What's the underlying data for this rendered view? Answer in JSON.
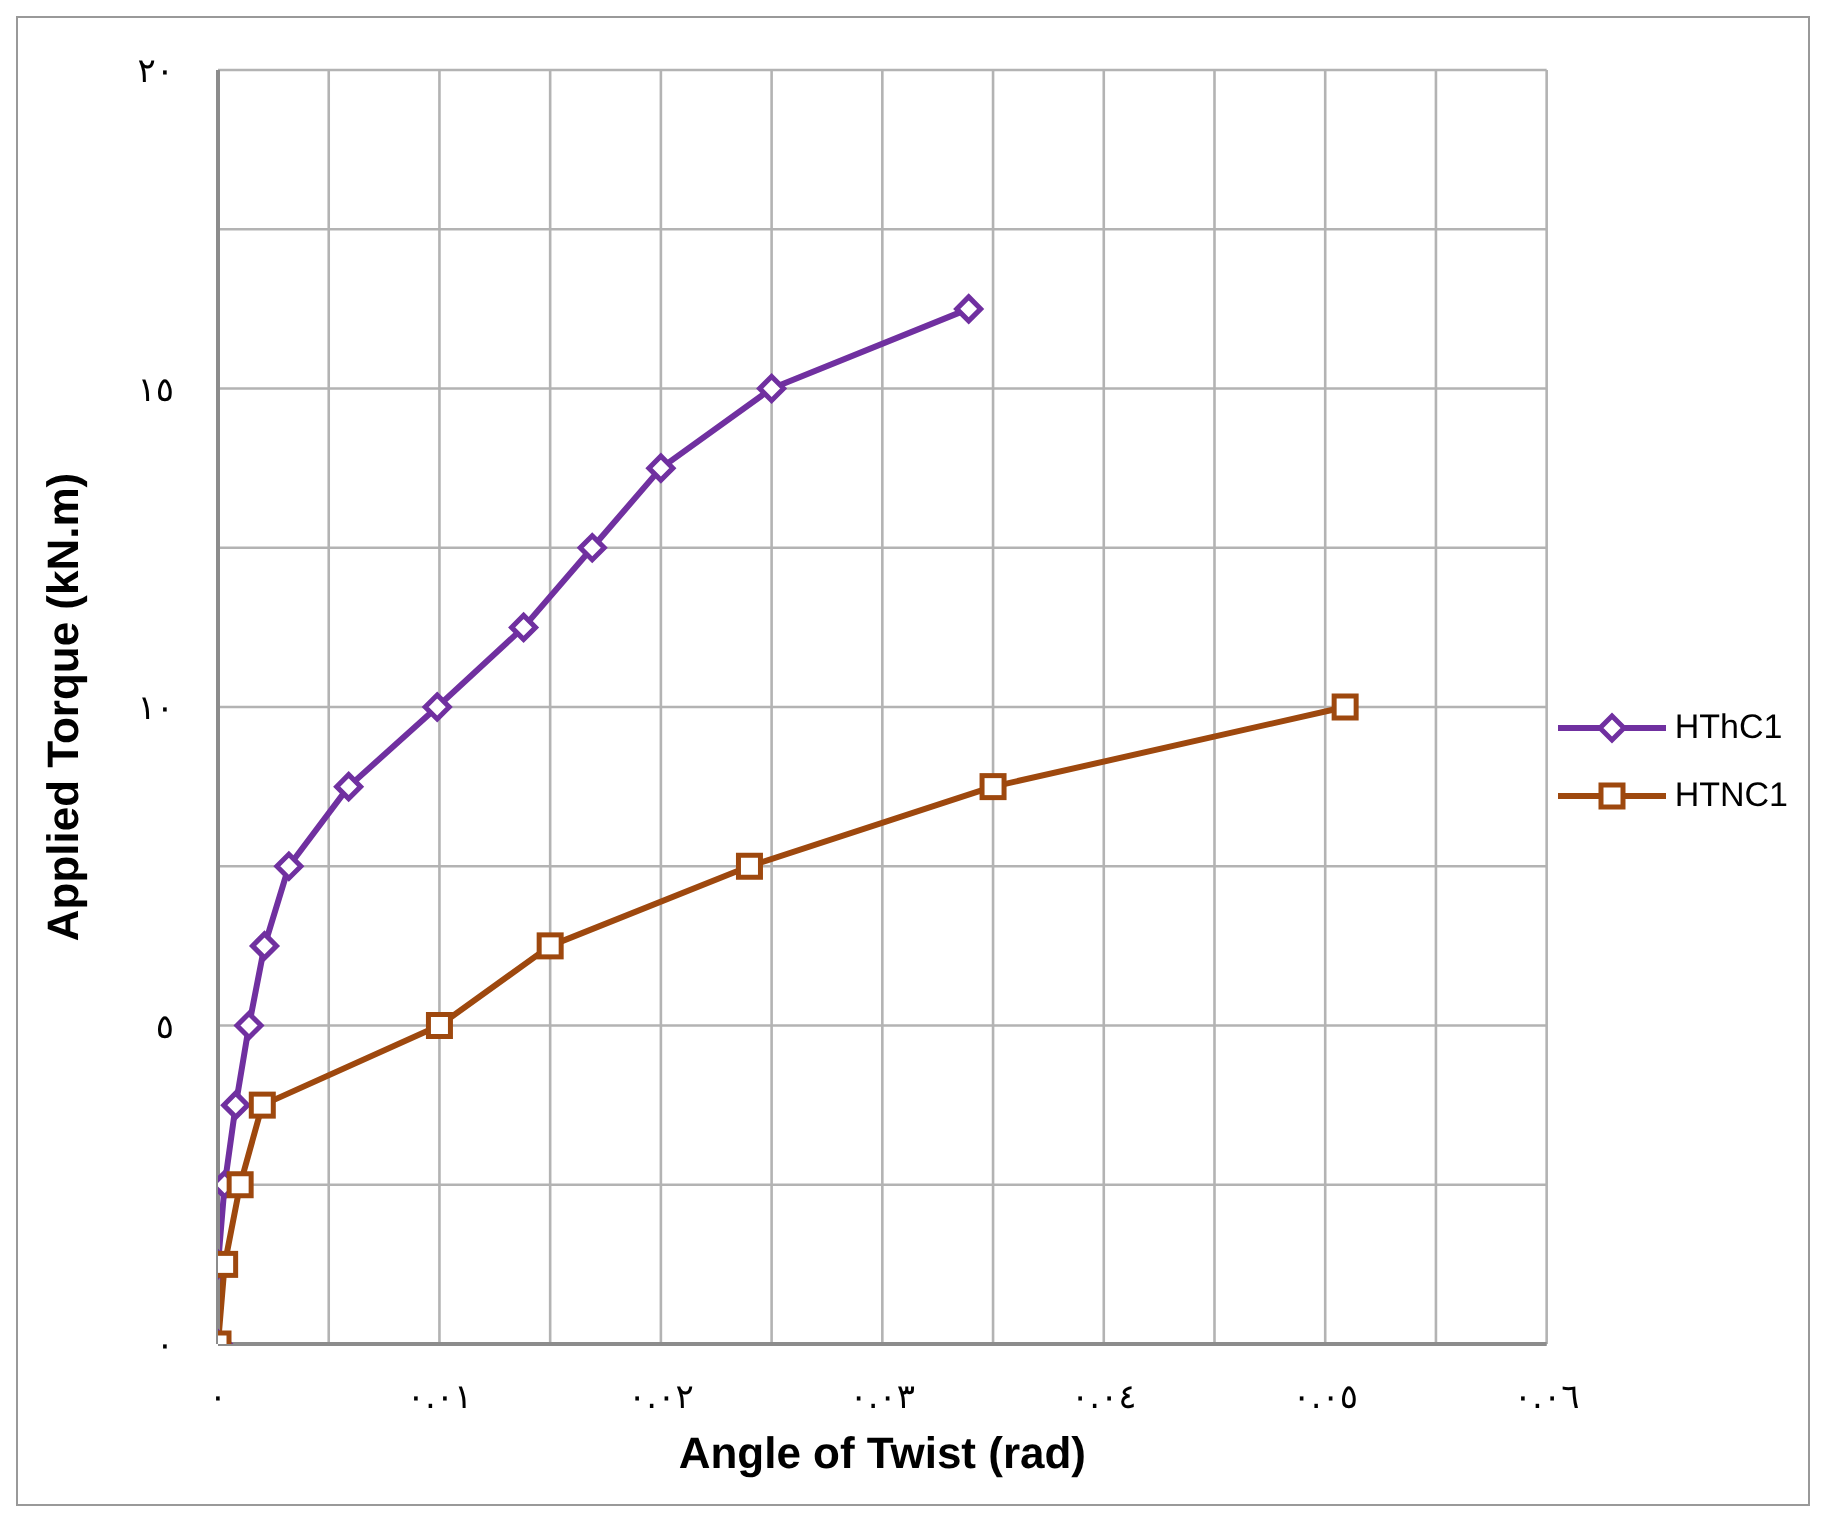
{
  "chart_data": {
    "type": "line",
    "xlabel": "Angle of Twist (rad)",
    "ylabel": "Applied Torque (kN.m)",
    "xlim": [
      0,
      0.06
    ],
    "ylim": [
      0,
      20
    ],
    "xticks": [
      {
        "value": 0,
        "label": "٠"
      },
      {
        "value": 0.005,
        "label": null
      },
      {
        "value": 0.01,
        "label": "٠.٠١"
      },
      {
        "value": 0.015,
        "label": null
      },
      {
        "value": 0.02,
        "label": "٠.٠٢"
      },
      {
        "value": 0.025,
        "label": null
      },
      {
        "value": 0.03,
        "label": "٠.٠٣"
      },
      {
        "value": 0.035,
        "label": null
      },
      {
        "value": 0.04,
        "label": "٠.٠٤"
      },
      {
        "value": 0.045,
        "label": null
      },
      {
        "value": 0.05,
        "label": "٠.٠٥"
      },
      {
        "value": 0.055,
        "label": null
      },
      {
        "value": 0.06,
        "label": "٠.٠٦"
      }
    ],
    "yticks": [
      {
        "value": 0,
        "label": "٠"
      },
      {
        "value": 2.5,
        "label": null
      },
      {
        "value": 5,
        "label": "٥"
      },
      {
        "value": 7.5,
        "label": null
      },
      {
        "value": 10,
        "label": "١٠"
      },
      {
        "value": 12.5,
        "label": null
      },
      {
        "value": 15,
        "label": "١٥"
      },
      {
        "value": 17.5,
        "label": null
      },
      {
        "value": 20,
        "label": "٢٠"
      }
    ],
    "grid": true,
    "legend": "right",
    "line_style": "solid",
    "series": [
      {
        "name": "HThC1",
        "color": "#7030a0",
        "marker": "diamond",
        "x": [
          0,
          0,
          0.0003,
          0.0008,
          0.0014,
          0.0021,
          0.0032,
          0.0059,
          0.0099,
          0.0138,
          0.0169,
          0.02,
          0.025,
          0.0339
        ],
        "values": [
          0,
          1.25,
          2.5,
          3.75,
          5,
          6.25,
          7.5,
          8.75,
          10,
          11.25,
          12.5,
          13.75,
          15,
          16.25
        ]
      },
      {
        "name": "HTNC1",
        "color": "#9e480e",
        "marker": "square",
        "x": [
          0,
          0.0003,
          0.001,
          0.002,
          0.01,
          0.015,
          0.024,
          0.035,
          0.0509
        ],
        "values": [
          0,
          1.25,
          2.5,
          3.75,
          5,
          6.25,
          7.5,
          8.75,
          10
        ]
      }
    ]
  }
}
